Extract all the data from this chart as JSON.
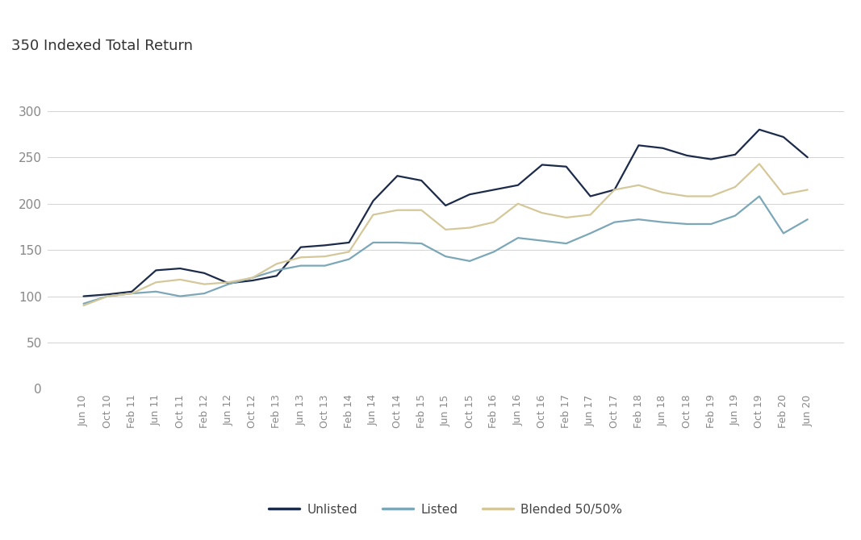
{
  "title": "350 Indexed Total Return",
  "ylim": [
    0,
    350
  ],
  "yticks": [
    0,
    50,
    100,
    150,
    200,
    250,
    300
  ],
  "background_color": "#ffffff",
  "unlisted_color": "#1c2b4a",
  "listed_color": "#7ba7b8",
  "blended_color": "#d4c89a",
  "line_width": 1.6,
  "labels": [
    "Unlisted",
    "Listed",
    "Blended 50/50%"
  ],
  "x_labels": [
    "Jun 10",
    "Oct 10",
    "Feb 11",
    "Jun 11",
    "Oct 11",
    "Feb 12",
    "Jun 12",
    "Oct 12",
    "Feb 13",
    "Jun 13",
    "Oct 13",
    "Feb 14",
    "Jun 14",
    "Oct 14",
    "Feb 15",
    "Jun 15",
    "Oct 15",
    "Feb 16",
    "Jun 16",
    "Oct 16",
    "Feb 17",
    "Jun 17",
    "Oct 17",
    "Feb 18",
    "Jun 18",
    "Oct 18",
    "Feb 19",
    "Jun 19",
    "Oct 19",
    "Feb 20",
    "Jun 20"
  ],
  "unlisted": [
    100,
    102,
    105,
    128,
    130,
    125,
    114,
    117,
    122,
    153,
    155,
    158,
    203,
    230,
    225,
    198,
    210,
    215,
    220,
    242,
    240,
    208,
    215,
    263,
    260,
    252,
    248,
    253,
    280,
    272,
    250
  ],
  "listed": [
    92,
    100,
    103,
    105,
    100,
    103,
    113,
    120,
    128,
    133,
    133,
    140,
    158,
    158,
    157,
    143,
    138,
    148,
    163,
    160,
    157,
    168,
    180,
    183,
    180,
    178,
    178,
    187,
    208,
    168,
    183
  ],
  "blended": [
    90,
    100,
    103,
    115,
    118,
    113,
    115,
    120,
    135,
    142,
    143,
    148,
    188,
    193,
    193,
    172,
    174,
    180,
    200,
    190,
    185,
    188,
    215,
    220,
    212,
    208,
    208,
    218,
    243,
    210,
    215
  ],
  "grid_color": "#cccccc",
  "tick_color": "#888888",
  "title_fontsize": 13,
  "tick_fontsize": 11,
  "legend_fontsize": 11
}
